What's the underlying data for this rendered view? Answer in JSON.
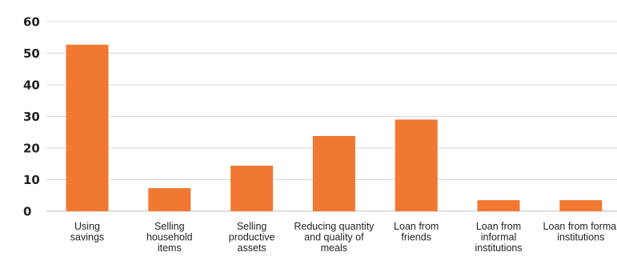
{
  "chart_data": {
    "type": "bar",
    "categories": [
      [
        "Using",
        "savings"
      ],
      [
        "Selling",
        "household",
        "items"
      ],
      [
        "Selling",
        "productive",
        "assets"
      ],
      [
        "Reducing quantity",
        "and quality of",
        "meals"
      ],
      [
        "Loan from",
        "friends"
      ],
      [
        "Loan from",
        "informal",
        "institutions"
      ],
      [
        "Loan from formal",
        "institutions"
      ]
    ],
    "values": [
      52.7,
      7.3,
      14.4,
      23.8,
      29,
      3.5,
      3.5
    ],
    "ylim": [
      0,
      60
    ],
    "yticks": [
      "0",
      "10",
      "20",
      "30",
      "40",
      "50",
      "60"
    ],
    "bar_color": "#f07830",
    "grid": true,
    "title": "",
    "xlabel": "",
    "ylabel": ""
  }
}
